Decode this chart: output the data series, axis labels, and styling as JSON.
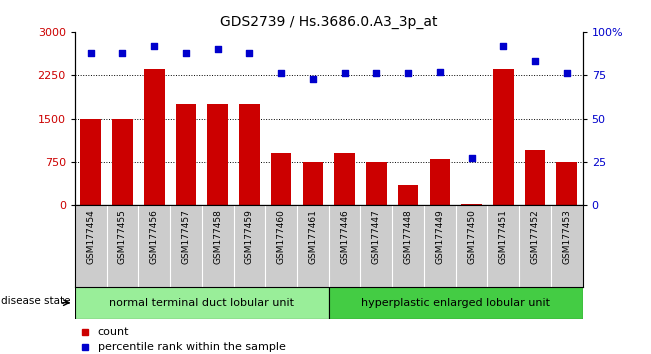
{
  "title": "GDS2739 / Hs.3686.0.A3_3p_at",
  "samples": [
    "GSM177454",
    "GSM177455",
    "GSM177456",
    "GSM177457",
    "GSM177458",
    "GSM177459",
    "GSM177460",
    "GSM177461",
    "GSM177446",
    "GSM177447",
    "GSM177448",
    "GSM177449",
    "GSM177450",
    "GSM177451",
    "GSM177452",
    "GSM177453"
  ],
  "counts": [
    1500,
    1500,
    2350,
    1750,
    1750,
    1750,
    900,
    750,
    900,
    750,
    350,
    800,
    30,
    2350,
    950,
    750
  ],
  "percentiles": [
    88,
    88,
    92,
    88,
    90,
    88,
    76,
    73,
    76,
    76,
    76,
    77,
    27,
    92,
    83,
    76
  ],
  "group1_label": "normal terminal duct lobular unit",
  "group2_label": "hyperplastic enlarged lobular unit",
  "group1_count": 8,
  "group2_count": 8,
  "disease_state_label": "disease state",
  "legend_count_label": "count",
  "legend_percentile_label": "percentile rank within the sample",
  "bar_color": "#CC0000",
  "dot_color": "#0000CC",
  "group1_color": "#99EE99",
  "group2_color": "#44CC44",
  "sample_bg_color": "#CCCCCC",
  "ylim_left": [
    0,
    3000
  ],
  "ylim_right": [
    0,
    100
  ],
  "yticks_left": [
    0,
    750,
    1500,
    2250,
    3000
  ],
  "yticks_right": [
    0,
    25,
    50,
    75,
    100
  ],
  "grid_levels": [
    750,
    1500,
    2250
  ]
}
